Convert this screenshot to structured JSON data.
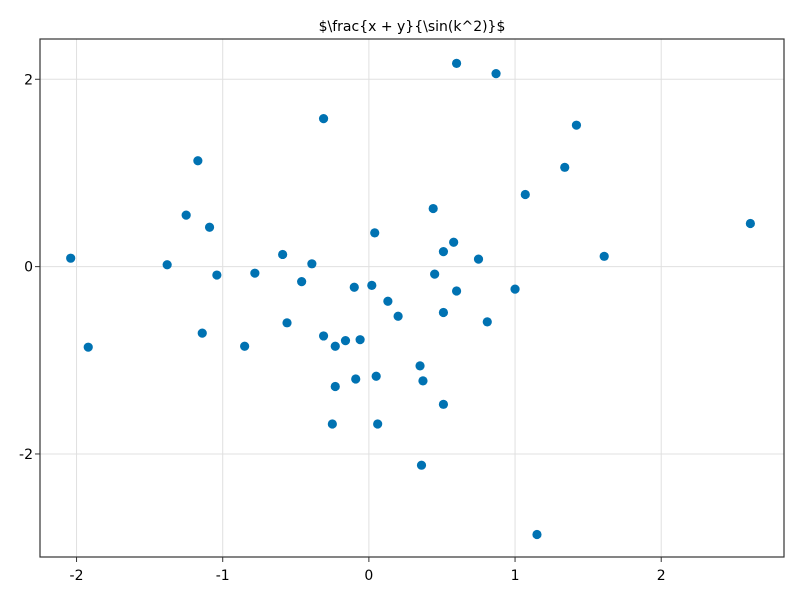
{
  "chart_data": {
    "type": "scatter",
    "title": "$\\frac{x + y}{\\sin(k^2)}$",
    "xlabel": "",
    "ylabel": "",
    "xlim": [
      -2.25,
      2.84
    ],
    "ylim": [
      -3.1,
      2.43
    ],
    "grid": true,
    "xticks": [
      -2,
      -1,
      0,
      1,
      2
    ],
    "xtick_labels": [
      "-2",
      "-1",
      "0",
      "1",
      "2"
    ],
    "yticks": [
      -2,
      0,
      2
    ],
    "ytick_labels": [
      "-2",
      "0",
      "2"
    ],
    "colors": {
      "marker": "#0072b2",
      "grid": "#e0e0e0",
      "frame": "#333333"
    },
    "points": [
      {
        "x": -2.04,
        "y": 0.09
      },
      {
        "x": -1.92,
        "y": -0.86
      },
      {
        "x": -1.38,
        "y": 0.02
      },
      {
        "x": -1.25,
        "y": 0.55
      },
      {
        "x": -1.17,
        "y": 1.13
      },
      {
        "x": -1.14,
        "y": -0.71
      },
      {
        "x": -1.09,
        "y": 0.42
      },
      {
        "x": -1.04,
        "y": -0.09
      },
      {
        "x": -0.85,
        "y": -0.85
      },
      {
        "x": -0.78,
        "y": -0.07
      },
      {
        "x": -0.59,
        "y": 0.13
      },
      {
        "x": -0.56,
        "y": -0.6
      },
      {
        "x": -0.46,
        "y": -0.16
      },
      {
        "x": -0.39,
        "y": 0.03
      },
      {
        "x": -0.31,
        "y": 1.58
      },
      {
        "x": -0.31,
        "y": -0.74
      },
      {
        "x": -0.25,
        "y": -1.68
      },
      {
        "x": -0.23,
        "y": -0.85
      },
      {
        "x": -0.23,
        "y": -1.28
      },
      {
        "x": -0.16,
        "y": -0.79
      },
      {
        "x": -0.1,
        "y": -0.22
      },
      {
        "x": -0.09,
        "y": -1.2
      },
      {
        "x": -0.06,
        "y": -0.78
      },
      {
        "x": 0.02,
        "y": -0.2
      },
      {
        "x": 0.04,
        "y": 0.36
      },
      {
        "x": 0.05,
        "y": -1.17
      },
      {
        "x": 0.06,
        "y": -1.68
      },
      {
        "x": 0.13,
        "y": -0.37
      },
      {
        "x": 0.2,
        "y": -0.53
      },
      {
        "x": 0.35,
        "y": -1.06
      },
      {
        "x": 0.36,
        "y": -2.12
      },
      {
        "x": 0.37,
        "y": -1.22
      },
      {
        "x": 0.44,
        "y": 0.62
      },
      {
        "x": 0.45,
        "y": -0.08
      },
      {
        "x": 0.51,
        "y": 0.16
      },
      {
        "x": 0.51,
        "y": -0.49
      },
      {
        "x": 0.51,
        "y": -1.47
      },
      {
        "x": 0.58,
        "y": 0.26
      },
      {
        "x": 0.6,
        "y": 2.17
      },
      {
        "x": 0.6,
        "y": -0.26
      },
      {
        "x": 0.75,
        "y": 0.08
      },
      {
        "x": 0.81,
        "y": -0.59
      },
      {
        "x": 0.87,
        "y": 2.06
      },
      {
        "x": 1.0,
        "y": -0.24
      },
      {
        "x": 1.07,
        "y": 0.77
      },
      {
        "x": 1.15,
        "y": -2.86
      },
      {
        "x": 1.34,
        "y": 1.06
      },
      {
        "x": 1.42,
        "y": 1.51
      },
      {
        "x": 1.61,
        "y": 0.11
      },
      {
        "x": 2.61,
        "y": 0.46
      }
    ]
  }
}
